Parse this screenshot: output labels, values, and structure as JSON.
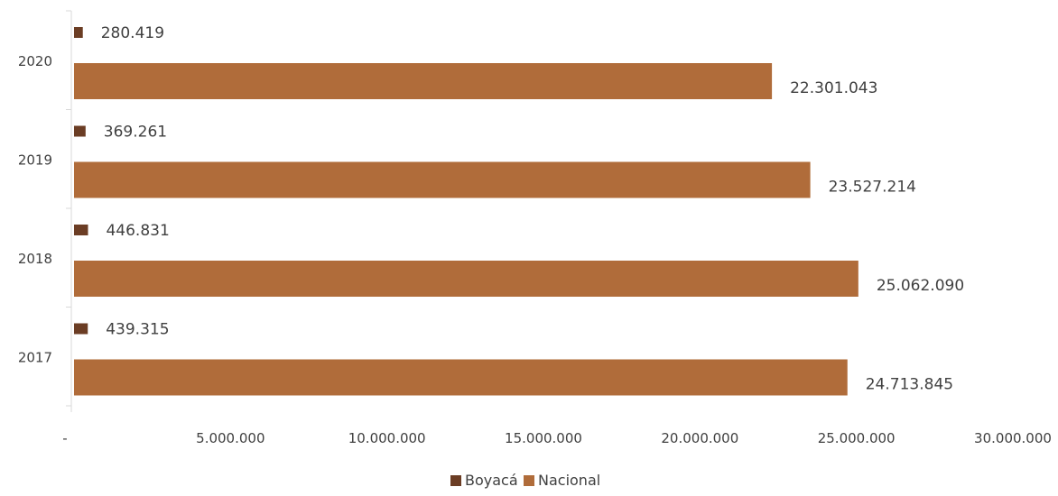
{
  "chart_data": {
    "type": "bar",
    "orientation": "horizontal",
    "categories": [
      "2020",
      "2019",
      "2018",
      "2017"
    ],
    "series": [
      {
        "name": "Boyacá",
        "color": "#6b3d24",
        "values": [
          280419,
          369261,
          446831,
          439315
        ],
        "labels": [
          "280.419",
          "369.261",
          "446.831",
          "439.315"
        ]
      },
      {
        "name": "Nacional",
        "color": "#b06c3a",
        "values": [
          22301043,
          23527214,
          25062090,
          24713845
        ],
        "labels": [
          "22.301.043",
          "23.527.214",
          "25.062.090",
          "24.713.845"
        ]
      }
    ],
    "xlim": [
      0,
      30000000
    ],
    "x_ticks": [
      0,
      5000000,
      10000000,
      15000000,
      20000000,
      25000000,
      30000000
    ],
    "x_tick_labels": [
      "-",
      "5.000.000",
      "10.000.000",
      "15.000.000",
      "20.000.000",
      "25.000.000",
      "30.000.000"
    ],
    "grid": false,
    "legend_position": "bottom",
    "axis_color": "#d9d9d9"
  }
}
